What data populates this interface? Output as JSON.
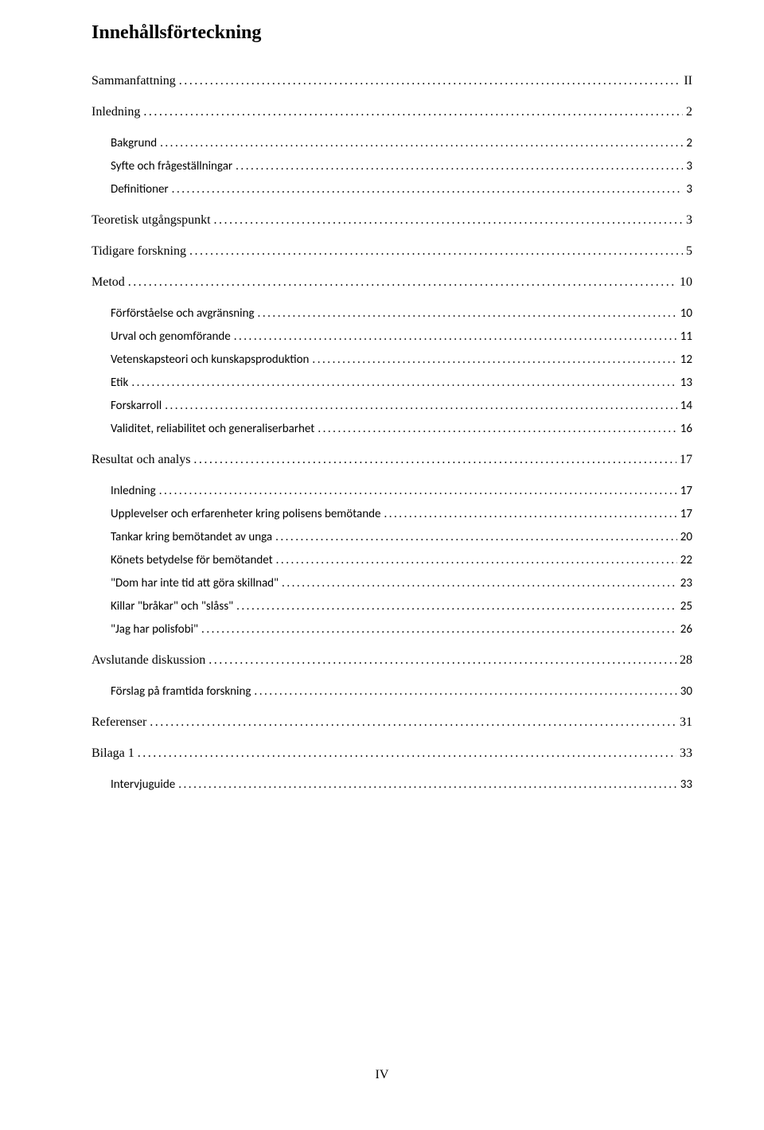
{
  "title": "Innehållsförteckning",
  "page_number": "IV",
  "toc": [
    {
      "label": "Sammanfattning",
      "page": "II",
      "level": 0
    },
    {
      "label": "Inledning",
      "page": "2",
      "level": 0
    },
    {
      "label": "Bakgrund",
      "page": "2",
      "level": 1
    },
    {
      "label": "Syfte och frågeställningar",
      "page": "3",
      "level": 1
    },
    {
      "label": "Definitioner",
      "page": "3",
      "level": 1
    },
    {
      "label": "Teoretisk utgångspunkt",
      "page": "3",
      "level": 0
    },
    {
      "label": "Tidigare forskning",
      "page": "5",
      "level": 0
    },
    {
      "label": "Metod",
      "page": "10",
      "level": 0
    },
    {
      "label": "Förförståelse och avgränsning",
      "page": "10",
      "level": 1
    },
    {
      "label": "Urval och genomförande",
      "page": "11",
      "level": 1
    },
    {
      "label": "Vetenskapsteori och kunskapsproduktion",
      "page": "12",
      "level": 1
    },
    {
      "label": "Etik",
      "page": "13",
      "level": 1
    },
    {
      "label": "Forskarroll",
      "page": "14",
      "level": 1
    },
    {
      "label": "Validitet, reliabilitet och generaliserbarhet",
      "page": "16",
      "level": 1
    },
    {
      "label": "Resultat och analys",
      "page": "17",
      "level": 0
    },
    {
      "label": "Inledning",
      "page": "17",
      "level": 1
    },
    {
      "label": "Upplevelser och erfarenheter kring polisens bemötande",
      "page": "17",
      "level": 1
    },
    {
      "label": "Tankar kring bemötandet av unga",
      "page": "20",
      "level": 1
    },
    {
      "label": "Könets betydelse för bemötandet",
      "page": "22",
      "level": 1
    },
    {
      "label": "\"Dom har inte tid att göra skillnad\"",
      "page": "23",
      "level": 1
    },
    {
      "label": "Killar \"bråkar\" och \"slåss\"",
      "page": "25",
      "level": 1
    },
    {
      "label": "\"Jag har polisfobi\"",
      "page": "26",
      "level": 1
    },
    {
      "label": "Avslutande diskussion",
      "page": "28",
      "level": 0
    },
    {
      "label": "Förslag på framtida forskning",
      "page": "30",
      "level": 1
    },
    {
      "label": "Referenser",
      "page": "31",
      "level": 0
    },
    {
      "label": "Bilaga 1",
      "page": "33",
      "level": 0
    },
    {
      "label": "Intervjuguide",
      "page": "33",
      "level": 1
    }
  ]
}
